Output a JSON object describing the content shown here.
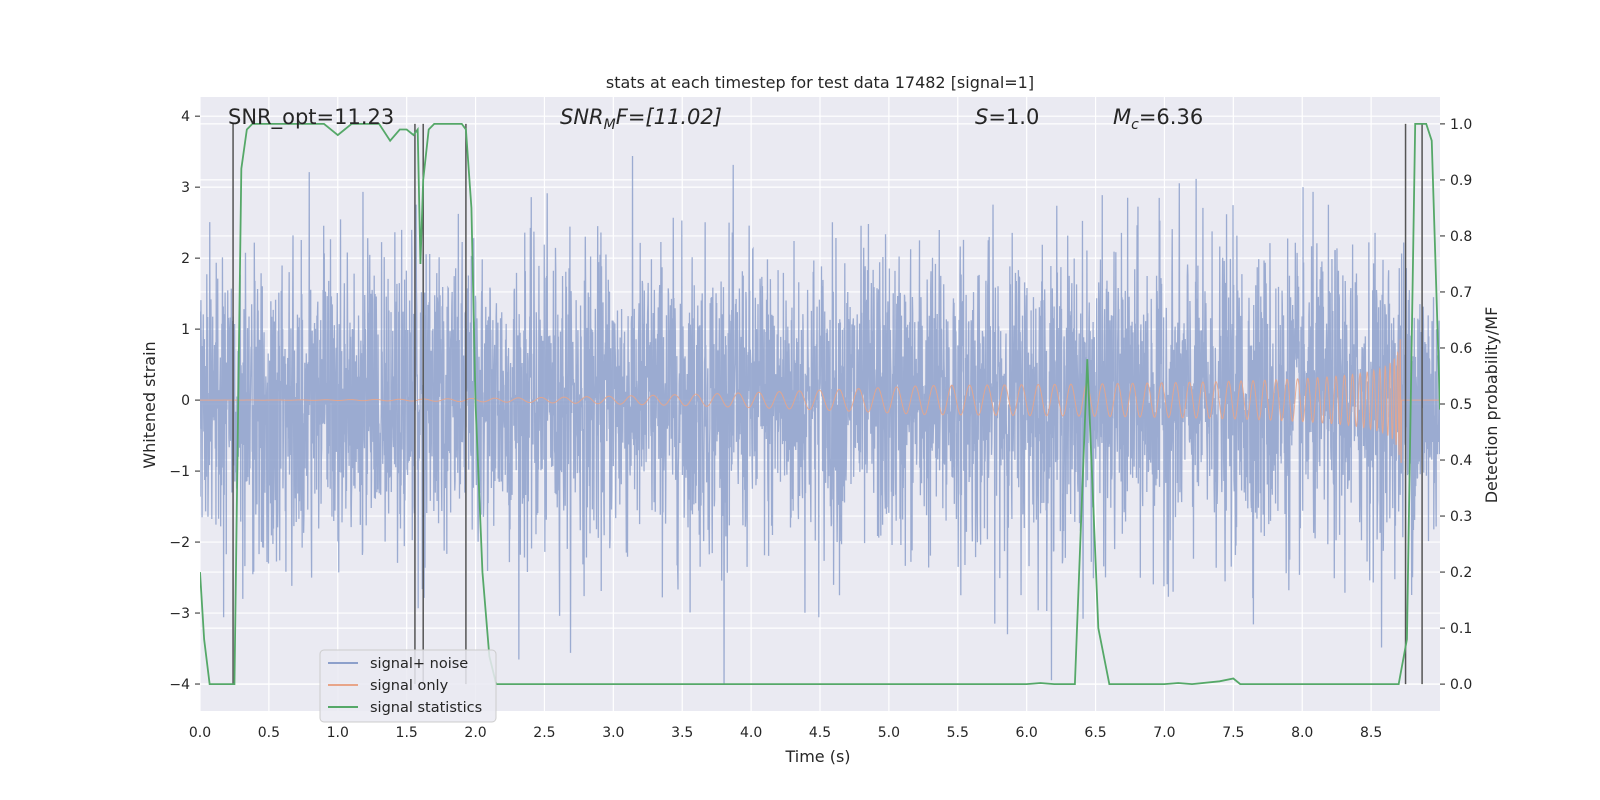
{
  "chart_data": {
    "type": "line",
    "title": "stats at each timestep for test data 17482 [signal=1]",
    "xlabel": "Time (s)",
    "ylabel_left": "Whitened strain",
    "ylabel_right": "Detection probability/MF",
    "xlim": [
      0.0,
      9.0
    ],
    "ylim_left": [
      -4.38,
      4.27
    ],
    "ylim_right": [
      -0.048,
      1.048
    ],
    "grid": true,
    "legend_placement": "lower-left",
    "x_ticks": [
      "0.0",
      "0.5",
      "1.0",
      "1.5",
      "2.0",
      "2.5",
      "3.0",
      "3.5",
      "4.0",
      "4.5",
      "5.0",
      "5.5",
      "6.0",
      "6.5",
      "7.0",
      "7.5",
      "8.0",
      "8.5"
    ],
    "y_left_ticks": [
      "4",
      "3",
      "2",
      "1",
      "0",
      "−1",
      "−2",
      "−3",
      "−4"
    ],
    "y_right_ticks": [
      "1.0",
      "0.9",
      "0.8",
      "0.7",
      "0.6",
      "0.5",
      "0.4",
      "0.3",
      "0.2",
      "0.1",
      "0.0"
    ],
    "annotations": {
      "snr_opt": "SNR_opt=11.23",
      "snr_mf_prefix": "SNR",
      "snr_mf_sub": "M",
      "snr_mf_suffix": "F=[11.02]",
      "s_var": "S",
      "s_value": "=1.0",
      "mc_var": "M",
      "mc_sub": "c",
      "mc_value": "=6.36"
    },
    "series": [
      {
        "name": "signal+ noise",
        "color": "#8da0cb",
        "axis": "left",
        "noise_sigma": 1.0,
        "peak_range": [
          -4.0,
          3.95
        ]
      },
      {
        "name": "signal only",
        "color": "#e8a589",
        "axis": "left",
        "chirp": {
          "start": 0.0,
          "end": 8.72,
          "max_amplitude": 1.4,
          "min_amplitude": 0.02
        }
      },
      {
        "name": "signal statistics",
        "color": "#55a868",
        "axis": "right",
        "x": [
          0.0,
          0.03,
          0.07,
          0.12,
          0.19,
          0.25,
          0.3,
          0.34,
          0.38,
          0.5,
          0.7,
          0.9,
          1.0,
          1.05,
          1.1,
          1.2,
          1.3,
          1.38,
          1.45,
          1.5,
          1.55,
          1.58,
          1.6,
          1.62,
          1.66,
          1.7,
          1.8,
          1.9,
          1.93,
          1.97,
          2.0,
          2.05,
          2.1,
          2.15,
          2.5,
          3.0,
          3.5,
          4.0,
          4.2,
          4.5,
          5.0,
          5.5,
          6.0,
          6.1,
          6.2,
          6.35,
          6.44,
          6.52,
          6.6,
          7.0,
          7.1,
          7.2,
          7.4,
          7.5,
          7.55,
          7.6,
          8.0,
          8.5,
          8.7,
          8.76,
          8.82,
          8.9,
          8.94,
          9.0
        ],
        "y": [
          0.2,
          0.08,
          0.0,
          0.0,
          0.0,
          0.0,
          0.92,
          0.99,
          1.0,
          1.0,
          1.0,
          1.0,
          0.98,
          0.99,
          1.0,
          1.0,
          1.0,
          0.97,
          0.99,
          0.99,
          0.98,
          0.99,
          0.75,
          0.9,
          0.99,
          1.0,
          1.0,
          1.0,
          0.99,
          0.85,
          0.5,
          0.2,
          0.05,
          0.0,
          0.0,
          0.0,
          0.0,
          0.0,
          0.0,
          0.0,
          0.0,
          0.0,
          0.0,
          0.002,
          0.0,
          0.0,
          0.58,
          0.1,
          0.0,
          0.0,
          0.002,
          0.0,
          0.005,
          0.01,
          0.0,
          0.0,
          0.0,
          0.0,
          0.0,
          0.08,
          1.0,
          1.0,
          0.97,
          0.49
        ]
      }
    ],
    "vertical_lines_x": [
      0.24,
      1.56,
      1.62,
      1.93,
      8.75,
      8.87
    ]
  }
}
